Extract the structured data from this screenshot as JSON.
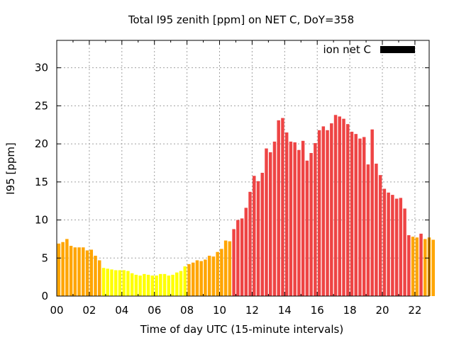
{
  "chart_data": {
    "type": "bar",
    "title": "Total I95 zenith [ppm] on NET C, DoY=358",
    "xlabel": "Time of day UTC (15-minute intervals)",
    "ylabel": "I95 [ppm]",
    "xlim": [
      0,
      22.875
    ],
    "ylim": [
      0,
      33.6
    ],
    "x_ticks": [
      0,
      2,
      4,
      6,
      8,
      10,
      12,
      14,
      16,
      18,
      20,
      22
    ],
    "x_tick_labels": [
      "00",
      "02",
      "04",
      "06",
      "08",
      "10",
      "12",
      "14",
      "16",
      "18",
      "20",
      "22"
    ],
    "y_ticks": [
      0,
      5,
      10,
      15,
      20,
      25,
      30
    ],
    "y_tick_labels": [
      "0",
      "5",
      "10",
      "15",
      "20",
      "25",
      "30"
    ],
    "grid": true,
    "legend": {
      "label": "ion net C",
      "color": "#000000",
      "position": "top-right"
    },
    "bar_interval_hours": 0.25,
    "color_levels": [
      {
        "max": 4,
        "color": "#ffff00"
      },
      {
        "max": 8,
        "color": "#ffa500"
      },
      {
        "max": 100,
        "color": "#ee4444"
      }
    ],
    "values": [
      6.9,
      7.1,
      7.5,
      6.6,
      6.4,
      6.4,
      6.4,
      6.0,
      6.1,
      5.3,
      4.7,
      3.7,
      3.6,
      3.5,
      3.4,
      3.4,
      3.4,
      3.3,
      3.0,
      2.8,
      2.7,
      2.9,
      2.8,
      2.7,
      2.7,
      2.9,
      2.9,
      2.7,
      2.8,
      3.1,
      3.3,
      3.9,
      4.2,
      4.4,
      4.7,
      4.6,
      4.8,
      5.3,
      5.2,
      5.8,
      6.2,
      7.3,
      7.2,
      8.8,
      10.0,
      10.2,
      11.6,
      13.7,
      15.8,
      15.1,
      16.2,
      19.4,
      18.9,
      20.3,
      23.1,
      23.4,
      21.5,
      20.3,
      20.2,
      19.2,
      20.4,
      17.8,
      18.8,
      20.1,
      21.8,
      22.3,
      21.8,
      22.7,
      23.8,
      23.6,
      23.3,
      22.6,
      21.6,
      21.3,
      20.7,
      20.9,
      17.3,
      21.9,
      17.4,
      15.9,
      14.1,
      13.6,
      13.3,
      12.8,
      12.9,
      11.5,
      8.0,
      7.8,
      7.7,
      8.2,
      7.5,
      7.7,
      7.4
    ]
  }
}
